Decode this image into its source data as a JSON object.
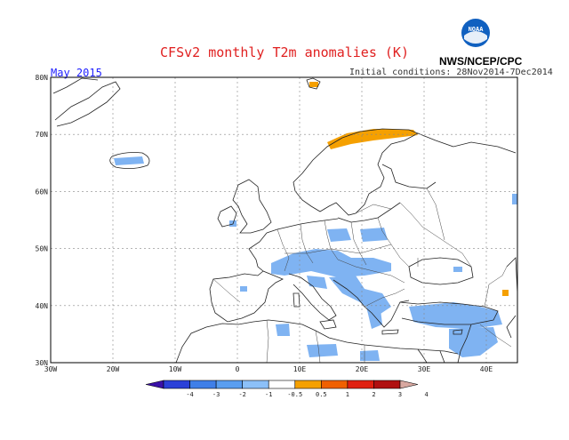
{
  "title": "CFSv2 monthly T2m anomalies (K)",
  "month": "May 2015",
  "initial_conditions": "Initial conditions: 28Nov2014-7Dec2014",
  "agency": "NWS/NCEP/CPC",
  "logo_text": "NOAA",
  "map": {
    "lon_range": [
      -30,
      45
    ],
    "lat_range": [
      30,
      80
    ],
    "lat_labels": [
      {
        "lat": 80,
        "text": "80N"
      },
      {
        "lat": 70,
        "text": "70N"
      },
      {
        "lat": 60,
        "text": "60N"
      },
      {
        "lat": 50,
        "text": "50N"
      },
      {
        "lat": 40,
        "text": "40N"
      },
      {
        "lat": 30,
        "text": "30N"
      }
    ],
    "lon_labels": [
      {
        "lon": -30,
        "text": "30W"
      },
      {
        "lon": -20,
        "text": "20W"
      },
      {
        "lon": -10,
        "text": "10W"
      },
      {
        "lon": 0,
        "text": "0"
      },
      {
        "lon": 10,
        "text": "10E"
      },
      {
        "lon": 20,
        "text": "20E"
      },
      {
        "lon": 30,
        "text": "30E"
      },
      {
        "lon": 40,
        "text": "40E"
      }
    ]
  },
  "colorbar": {
    "labels": [
      "-4",
      "-3",
      "-2",
      "-1",
      "-0.5",
      "0.5",
      "1",
      "2",
      "3",
      "4"
    ],
    "colors": [
      "#3a10a8",
      "#2a40d8",
      "#3f7fe8",
      "#5a9ef0",
      "#8cc0f8",
      "#ffffff",
      "#f5a000",
      "#f06000",
      "#e02010",
      "#b01010",
      "#d8a8a0"
    ]
  },
  "colors": {
    "cool_anomaly": "#7fb3f2",
    "warm_anomaly": "#f5a000"
  }
}
